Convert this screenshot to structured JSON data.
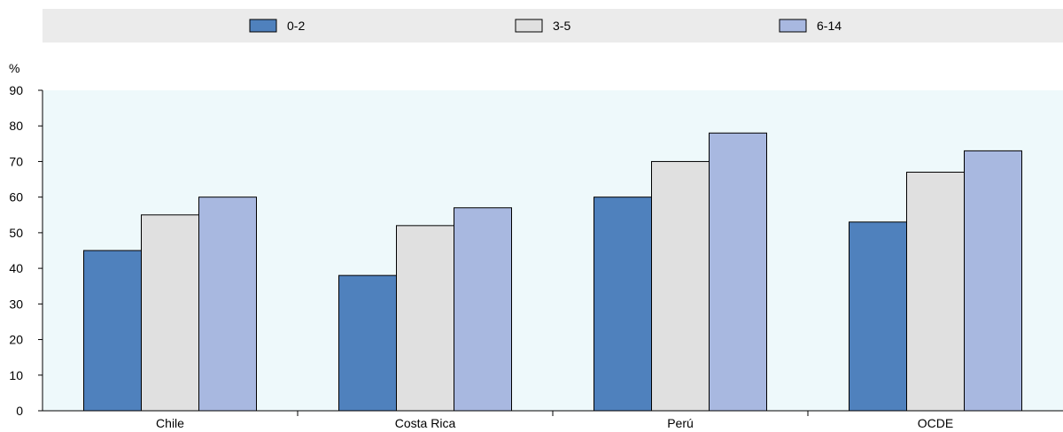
{
  "chart_data": {
    "type": "bar",
    "title": "",
    "xlabel": "",
    "ylabel": "%",
    "ylim": [
      0,
      90
    ],
    "yticks": [
      0,
      10,
      20,
      30,
      40,
      50,
      60,
      70,
      80,
      90
    ],
    "categories": [
      "Chile",
      "Costa Rica",
      "Perú",
      "OCDE"
    ],
    "series": [
      {
        "name": "0-2",
        "color": "#4f81bd",
        "values": [
          45,
          38,
          60,
          53
        ]
      },
      {
        "name": "3-5",
        "color": "#e0e0e0",
        "values": [
          55,
          52,
          70,
          67
        ]
      },
      {
        "name": "6-14",
        "color": "#a8b8e0",
        "values": [
          60,
          57,
          78,
          73
        ]
      }
    ],
    "legend": "top",
    "grid": false,
    "plot_background": "#eef9fb",
    "legend_background": "#ebebeb"
  }
}
